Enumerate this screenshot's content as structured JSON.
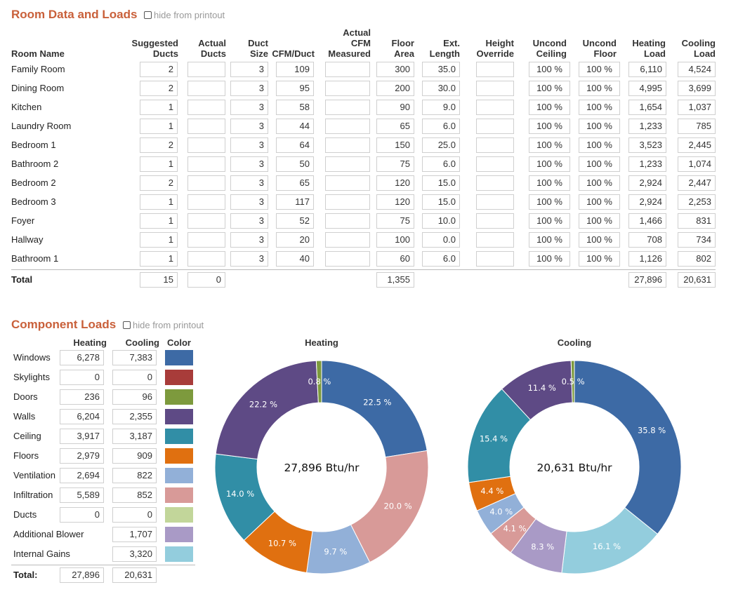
{
  "room_section": {
    "title": "Room Data and Loads",
    "hide_label": "hide from printout",
    "headers": {
      "room_name": "Room Name",
      "suggested_ducts": [
        "Suggested",
        "Ducts"
      ],
      "actual_ducts": [
        "Actual",
        "Ducts"
      ],
      "duct_size": [
        "Duct",
        "Size"
      ],
      "cfm_duct": "CFM/Duct",
      "actual_cfm": [
        "Actual",
        "CFM",
        "Measured"
      ],
      "floor_area": [
        "Floor",
        "Area"
      ],
      "ext_length": [
        "Ext.",
        "Length"
      ],
      "height_override": [
        "Height",
        "Override"
      ],
      "uncond_ceiling": [
        "Uncond",
        "Ceiling"
      ],
      "uncond_floor": [
        "Uncond",
        "Floor"
      ],
      "heating_load": [
        "Heating",
        "Load"
      ],
      "cooling_load": [
        "Cooling",
        "Load"
      ]
    },
    "rooms": [
      {
        "name": "Family Room",
        "suggested": "2",
        "actual": "",
        "duct_size": "3",
        "cfm": "109",
        "actual_cfm": "",
        "area": "300",
        "ext_len": "35.0",
        "height": "",
        "unc_ceil": "100 %",
        "unc_floor": "100 %",
        "heating": "6,110",
        "cooling": "4,524"
      },
      {
        "name": "Dining Room",
        "suggested": "2",
        "actual": "",
        "duct_size": "3",
        "cfm": "95",
        "actual_cfm": "",
        "area": "200",
        "ext_len": "30.0",
        "height": "",
        "unc_ceil": "100 %",
        "unc_floor": "100 %",
        "heating": "4,995",
        "cooling": "3,699"
      },
      {
        "name": "Kitchen",
        "suggested": "1",
        "actual": "",
        "duct_size": "3",
        "cfm": "58",
        "actual_cfm": "",
        "area": "90",
        "ext_len": "9.0",
        "height": "",
        "unc_ceil": "100 %",
        "unc_floor": "100 %",
        "heating": "1,654",
        "cooling": "1,037"
      },
      {
        "name": "Laundry Room",
        "suggested": "1",
        "actual": "",
        "duct_size": "3",
        "cfm": "44",
        "actual_cfm": "",
        "area": "65",
        "ext_len": "6.0",
        "height": "",
        "unc_ceil": "100 %",
        "unc_floor": "100 %",
        "heating": "1,233",
        "cooling": "785"
      },
      {
        "name": "Bedroom 1",
        "suggested": "2",
        "actual": "",
        "duct_size": "3",
        "cfm": "64",
        "actual_cfm": "",
        "area": "150",
        "ext_len": "25.0",
        "height": "",
        "unc_ceil": "100 %",
        "unc_floor": "100 %",
        "heating": "3,523",
        "cooling": "2,445"
      },
      {
        "name": "Bathroom 2",
        "suggested": "1",
        "actual": "",
        "duct_size": "3",
        "cfm": "50",
        "actual_cfm": "",
        "area": "75",
        "ext_len": "6.0",
        "height": "",
        "unc_ceil": "100 %",
        "unc_floor": "100 %",
        "heating": "1,233",
        "cooling": "1,074"
      },
      {
        "name": "Bedroom 2",
        "suggested": "2",
        "actual": "",
        "duct_size": "3",
        "cfm": "65",
        "actual_cfm": "",
        "area": "120",
        "ext_len": "15.0",
        "height": "",
        "unc_ceil": "100 %",
        "unc_floor": "100 %",
        "heating": "2,924",
        "cooling": "2,447"
      },
      {
        "name": "Bedroom 3",
        "suggested": "1",
        "actual": "",
        "duct_size": "3",
        "cfm": "117",
        "actual_cfm": "",
        "area": "120",
        "ext_len": "15.0",
        "height": "",
        "unc_ceil": "100 %",
        "unc_floor": "100 %",
        "heating": "2,924",
        "cooling": "2,253"
      },
      {
        "name": "Foyer",
        "suggested": "1",
        "actual": "",
        "duct_size": "3",
        "cfm": "52",
        "actual_cfm": "",
        "area": "75",
        "ext_len": "10.0",
        "height": "",
        "unc_ceil": "100 %",
        "unc_floor": "100 %",
        "heating": "1,466",
        "cooling": "831"
      },
      {
        "name": "Hallway",
        "suggested": "1",
        "actual": "",
        "duct_size": "3",
        "cfm": "20",
        "actual_cfm": "",
        "area": "100",
        "ext_len": "0.0",
        "height": "",
        "unc_ceil": "100 %",
        "unc_floor": "100 %",
        "heating": "708",
        "cooling": "734"
      },
      {
        "name": "Bathroom 1",
        "suggested": "1",
        "actual": "",
        "duct_size": "3",
        "cfm": "40",
        "actual_cfm": "",
        "area": "60",
        "ext_len": "6.0",
        "height": "",
        "unc_ceil": "100 %",
        "unc_floor": "100 %",
        "heating": "1,126",
        "cooling": "802"
      }
    ],
    "total": {
      "label": "Total",
      "suggested": "15",
      "actual": "0",
      "area": "1,355",
      "heating": "27,896",
      "cooling": "20,631"
    }
  },
  "component_section": {
    "title": "Component Loads",
    "hide_label": "hide from printout",
    "headers": {
      "heating": "Heating",
      "cooling": "Cooling",
      "color": "Color"
    },
    "components": [
      {
        "name": "Windows",
        "heating": "6,278",
        "cooling": "7,383",
        "color": "#3d6aa5"
      },
      {
        "name": "Skylights",
        "heating": "0",
        "cooling": "0",
        "color": "#a83c3a"
      },
      {
        "name": "Doors",
        "heating": "236",
        "cooling": "96",
        "color": "#7d9a3d"
      },
      {
        "name": "Walls",
        "heating": "6,204",
        "cooling": "2,355",
        "color": "#5e4a85"
      },
      {
        "name": "Ceiling",
        "heating": "3,917",
        "cooling": "3,187",
        "color": "#318ea6"
      },
      {
        "name": "Floors",
        "heating": "2,979",
        "cooling": "909",
        "color": "#e07010"
      },
      {
        "name": "Ventilation",
        "heating": "2,694",
        "cooling": "822",
        "color": "#92b0d8"
      },
      {
        "name": "Infiltration",
        "heating": "5,589",
        "cooling": "852",
        "color": "#d89a98"
      },
      {
        "name": "Ducts",
        "heating": "0",
        "cooling": "0",
        "color": "#c2d69a"
      },
      {
        "name": "Additional Blower",
        "heating": "",
        "cooling": "1,707",
        "color": "#a99ac6"
      },
      {
        "name": "Internal Gains",
        "heating": "",
        "cooling": "3,320",
        "color": "#93cddd"
      }
    ],
    "total": {
      "label": "Total:",
      "heating": "27,896",
      "cooling": "20,631"
    }
  },
  "chart_data": [
    {
      "type": "pie",
      "title": "Heating",
      "center_label": "27,896 Btu/hr",
      "slices": [
        {
          "component": "Windows",
          "value": 22.5,
          "label": "22.5 %",
          "color": "#3d6aa5"
        },
        {
          "component": "Infiltration",
          "value": 20.0,
          "label": "20.0 %",
          "color": "#d89a98"
        },
        {
          "component": "Ventilation",
          "value": 9.7,
          "label": "9.7 %",
          "color": "#92b0d8"
        },
        {
          "component": "Floors",
          "value": 10.7,
          "label": "10.7 %",
          "color": "#e07010"
        },
        {
          "component": "Ceiling",
          "value": 14.0,
          "label": "14.0 %",
          "color": "#318ea6"
        },
        {
          "component": "Walls",
          "value": 22.2,
          "label": "22.2 %",
          "color": "#5e4a85"
        },
        {
          "component": "Doors",
          "value": 0.8,
          "label": "0.8 %",
          "color": "#7d9a3d"
        }
      ]
    },
    {
      "type": "pie",
      "title": "Cooling",
      "center_label": "20,631 Btu/hr",
      "slices": [
        {
          "component": "Windows",
          "value": 35.8,
          "label": "35.8 %",
          "color": "#3d6aa5"
        },
        {
          "component": "Internal Gains",
          "value": 16.1,
          "label": "16.1 %",
          "color": "#93cddd"
        },
        {
          "component": "Additional Blower",
          "value": 8.3,
          "label": "8.3 %",
          "color": "#a99ac6"
        },
        {
          "component": "Infiltration",
          "value": 4.1,
          "label": "4.1 %",
          "color": "#d89a98"
        },
        {
          "component": "Ventilation",
          "value": 4.0,
          "label": "4.0 %",
          "color": "#92b0d8"
        },
        {
          "component": "Floors",
          "value": 4.4,
          "label": "4.4 %",
          "color": "#e07010"
        },
        {
          "component": "Ceiling",
          "value": 15.4,
          "label": "15.4 %",
          "color": "#318ea6"
        },
        {
          "component": "Walls",
          "value": 11.4,
          "label": "11.4 %",
          "color": "#5e4a85"
        },
        {
          "component": "Doors",
          "value": 0.5,
          "label": "0.5 %",
          "color": "#7d9a3d"
        }
      ]
    }
  ]
}
